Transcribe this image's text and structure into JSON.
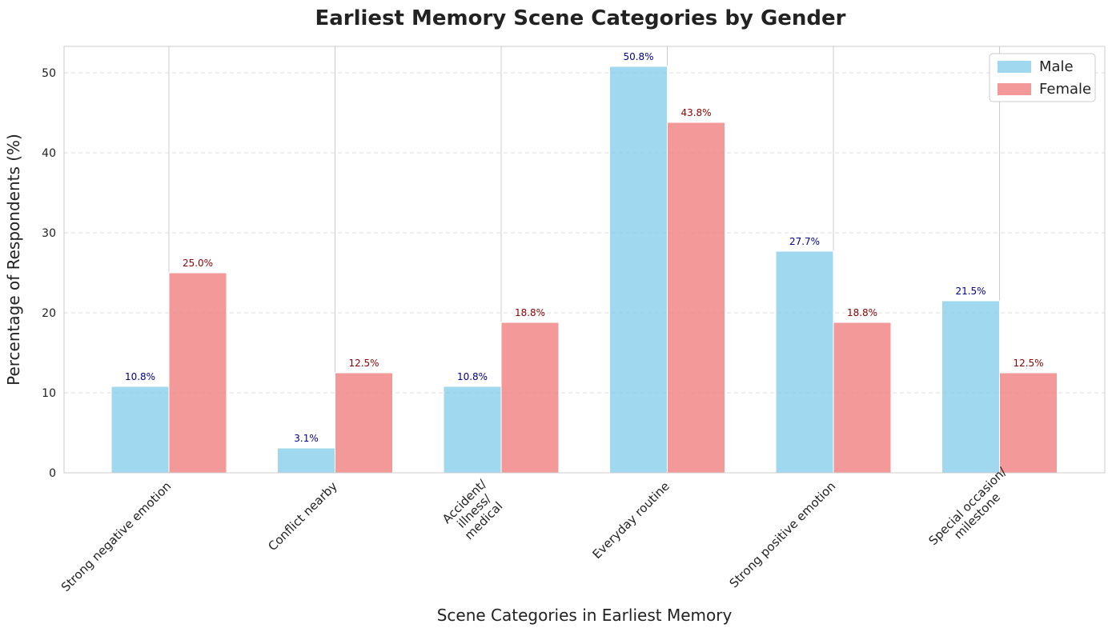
{
  "chart_data": {
    "type": "bar",
    "title": "Earliest Memory Scene Categories by Gender",
    "xlabel": "Scene Categories in Earliest Memory",
    "ylabel": "Percentage of Respondents (%)",
    "ylim": [
      0,
      53.3
    ],
    "yticks": [
      0,
      10,
      20,
      30,
      40,
      50
    ],
    "grid": true,
    "legend_position": "top-right",
    "categories": [
      [
        "Strong negative emotion"
      ],
      [
        "Conflict nearby"
      ],
      [
        "Accident/",
        "illness/",
        "medical"
      ],
      [
        "Everyday routine"
      ],
      [
        "Strong positive emotion"
      ],
      [
        "Special occasion/",
        "milestone"
      ]
    ],
    "series": [
      {
        "name": "Male",
        "color": "#87CEEB",
        "label_color": "#00008B",
        "values": [
          10.8,
          3.1,
          10.8,
          50.8,
          27.7,
          21.5
        ],
        "labels": [
          "10.8%",
          "3.1%",
          "10.8%",
          "50.8%",
          "27.7%",
          "21.5%"
        ]
      },
      {
        "name": "Female",
        "color": "#F08080",
        "label_color": "#8B0000",
        "values": [
          25.0,
          12.5,
          18.8,
          43.8,
          18.8,
          12.5
        ],
        "labels": [
          "25.0%",
          "12.5%",
          "18.8%",
          "43.8%",
          "18.8%",
          "12.5%"
        ]
      }
    ]
  }
}
